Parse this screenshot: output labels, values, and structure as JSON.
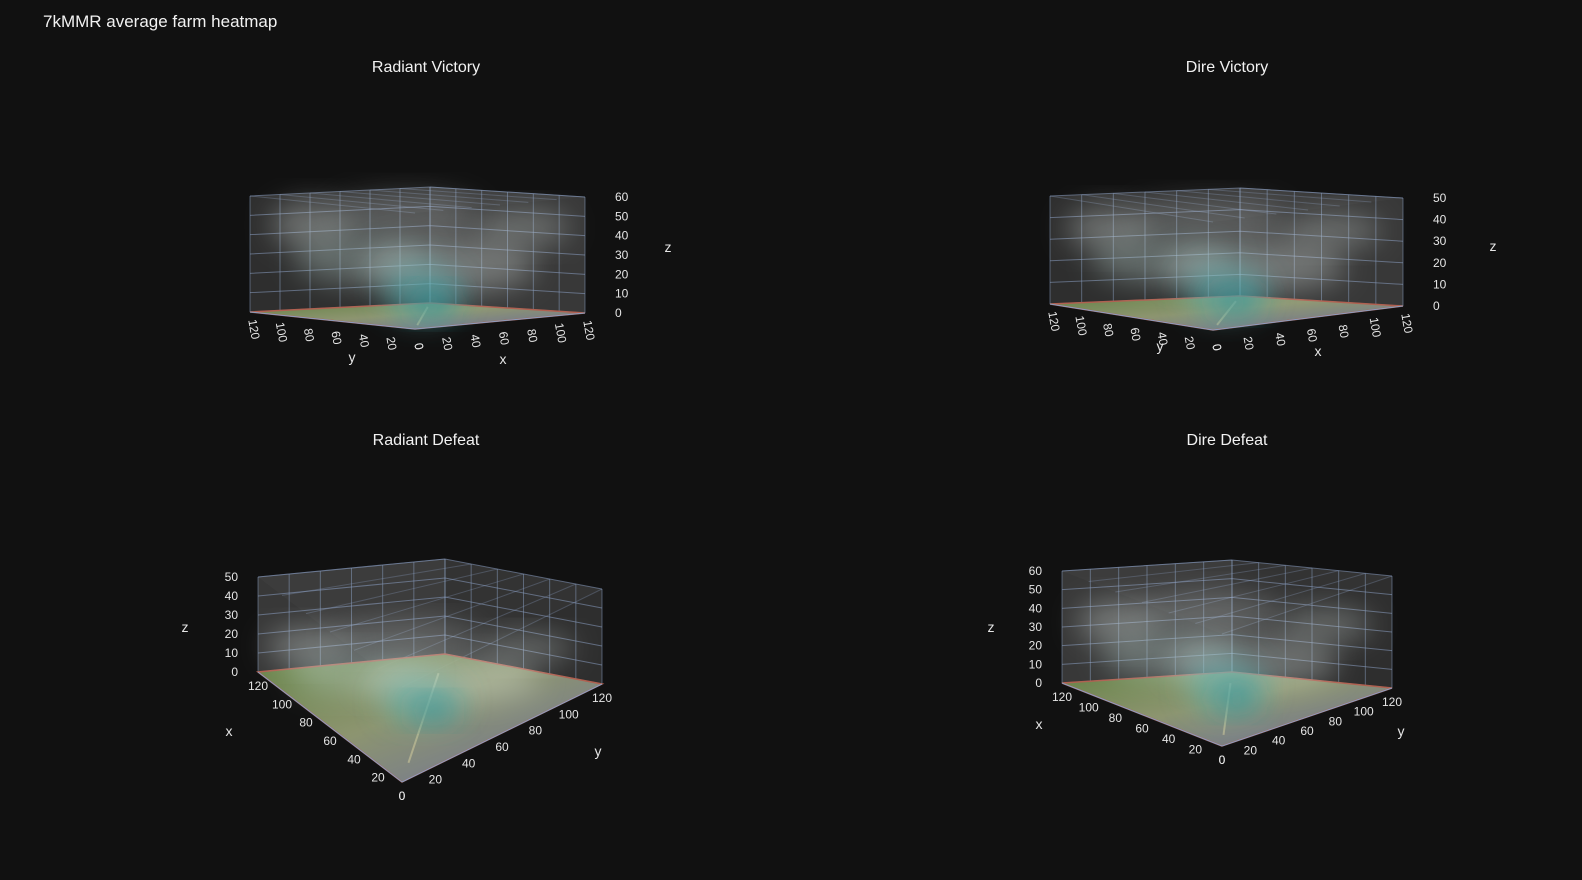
{
  "title": "7kMMR average farm heatmap",
  "colors": {
    "background": "#111111",
    "grid": "#8a9fc2",
    "volume": "#5fb5b5",
    "volume_light": "#dfe9e6",
    "map_green": "#7d9b57"
  },
  "chart_data": [
    {
      "type": "heatmap",
      "title": "Radiant Victory",
      "x_ticks": [
        "0",
        "20",
        "40",
        "60",
        "80",
        "100",
        "120"
      ],
      "y_ticks": [
        "0",
        "20",
        "40",
        "60",
        "80",
        "100",
        "120"
      ],
      "z_ticks": [
        "0",
        "10",
        "20",
        "30",
        "40",
        "50",
        "60"
      ],
      "xlabel": "x",
      "ylabel": "y",
      "zlabel": "z",
      "zlim": [
        0,
        60
      ],
      "grid": true
    },
    {
      "type": "heatmap",
      "title": "Dire Victory",
      "x_ticks": [
        "0",
        "20",
        "40",
        "60",
        "80",
        "100",
        "120"
      ],
      "y_ticks": [
        "0",
        "20",
        "40",
        "60",
        "80",
        "100",
        "120"
      ],
      "z_ticks": [
        "0",
        "10",
        "20",
        "30",
        "40",
        "50"
      ],
      "xlabel": "x",
      "ylabel": "y",
      "zlabel": "z",
      "zlim": [
        0,
        50
      ],
      "grid": true
    },
    {
      "type": "heatmap",
      "title": "Radiant Defeat",
      "x_ticks": [
        "0",
        "20",
        "40",
        "60",
        "80",
        "100",
        "120"
      ],
      "y_ticks": [
        "0",
        "20",
        "40",
        "60",
        "80",
        "100",
        "120"
      ],
      "z_ticks": [
        "0",
        "10",
        "20",
        "30",
        "40",
        "50"
      ],
      "xlabel": "x",
      "ylabel": "y",
      "zlabel": "z",
      "zlim": [
        0,
        50
      ],
      "grid": true
    },
    {
      "type": "heatmap",
      "title": "Dire Defeat",
      "x_ticks": [
        "0",
        "20",
        "40",
        "60",
        "80",
        "100",
        "120"
      ],
      "y_ticks": [
        "0",
        "20",
        "40",
        "60",
        "80",
        "100",
        "120"
      ],
      "z_ticks": [
        "0",
        "10",
        "20",
        "30",
        "40",
        "50",
        "60"
      ],
      "xlabel": "x",
      "ylabel": "y",
      "zlabel": "z",
      "zlim": [
        0,
        60
      ],
      "grid": true
    }
  ]
}
